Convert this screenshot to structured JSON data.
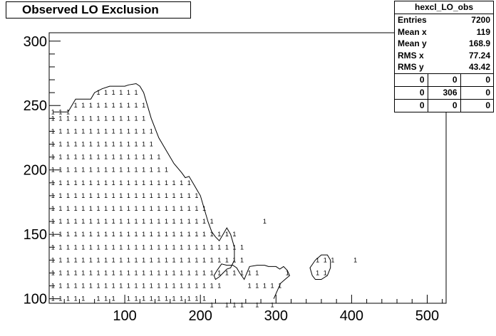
{
  "title": "Observed LO Exclusion",
  "stats": {
    "name": "hexcl_LO_obs",
    "rows": [
      {
        "label": "Entries",
        "value": "7200"
      },
      {
        "label": "Mean x",
        "value": "119"
      },
      {
        "label": "Mean y",
        "value": "168.9"
      },
      {
        "label": "RMS x",
        "value": "77.24"
      },
      {
        "label": "RMS y",
        "value": "43.42"
      }
    ],
    "grid": [
      [
        "0",
        "0",
        "0"
      ],
      [
        "0",
        "306",
        "0"
      ],
      [
        "0",
        "0",
        "0"
      ]
    ]
  },
  "chart_data": {
    "type": "scatter",
    "title": "Observed LO Exclusion",
    "xlabel": "",
    "ylabel": "",
    "xlim": [
      0,
      525
    ],
    "ylim": [
      96.5,
      306.5
    ],
    "xticks": [
      100,
      200,
      300,
      400,
      500
    ],
    "yticks": [
      100,
      150,
      200,
      250,
      300
    ],
    "cell_label": "1",
    "columns": [
      {
        "x": 5,
        "y": [
          100,
          110,
          120,
          130,
          140,
          150,
          160,
          170,
          180,
          190,
          200,
          210,
          220,
          230,
          240,
          245
        ]
      },
      {
        "x": 15,
        "y": [
          100,
          110,
          120,
          130,
          140,
          150,
          160,
          170,
          180,
          190,
          200,
          210,
          220,
          230,
          240,
          245
        ]
      },
      {
        "x": 25,
        "y": [
          100,
          110,
          120,
          130,
          140,
          150,
          160,
          170,
          180,
          190,
          200,
          210,
          220,
          230,
          240,
          245
        ]
      },
      {
        "x": 35,
        "y": [
          100,
          110,
          120,
          130,
          140,
          150,
          160,
          170,
          180,
          190,
          200,
          210,
          220,
          230,
          240,
          250
        ]
      },
      {
        "x": 45,
        "y": [
          100,
          110,
          120,
          130,
          140,
          150,
          160,
          170,
          180,
          190,
          200,
          210,
          220,
          230,
          240,
          250
        ]
      },
      {
        "x": 55,
        "y": [
          110,
          120,
          130,
          140,
          150,
          160,
          170,
          180,
          190,
          200,
          210,
          220,
          230,
          240,
          250
        ]
      },
      {
        "x": 65,
        "y": [
          100,
          110,
          120,
          130,
          140,
          150,
          160,
          170,
          180,
          190,
          200,
          210,
          220,
          230,
          240,
          250,
          260
        ]
      },
      {
        "x": 75,
        "y": [
          100,
          110,
          120,
          130,
          140,
          150,
          160,
          170,
          180,
          190,
          200,
          210,
          220,
          230,
          240,
          250,
          260
        ]
      },
      {
        "x": 85,
        "y": [
          100,
          110,
          120,
          130,
          140,
          150,
          160,
          170,
          180,
          190,
          200,
          210,
          220,
          230,
          240,
          250,
          260
        ]
      },
      {
        "x": 95,
        "y": [
          110,
          120,
          130,
          140,
          150,
          160,
          170,
          180,
          190,
          200,
          210,
          220,
          230,
          240,
          250,
          260
        ]
      },
      {
        "x": 105,
        "y": [
          100,
          110,
          120,
          130,
          140,
          150,
          160,
          170,
          180,
          190,
          200,
          210,
          220,
          230,
          240,
          250,
          260
        ]
      },
      {
        "x": 115,
        "y": [
          100,
          110,
          120,
          130,
          140,
          150,
          160,
          170,
          180,
          190,
          200,
          210,
          220,
          230,
          240,
          250,
          260
        ]
      },
      {
        "x": 125,
        "y": [
          100,
          110,
          120,
          130,
          140,
          150,
          160,
          170,
          180,
          190,
          200,
          210,
          220,
          230,
          240,
          250
        ]
      },
      {
        "x": 135,
        "y": [
          100,
          110,
          120,
          130,
          140,
          150,
          160,
          170,
          180,
          190,
          200,
          210,
          220,
          230
        ]
      },
      {
        "x": 145,
        "y": [
          100,
          110,
          120,
          130,
          140,
          150,
          160,
          170,
          180,
          190,
          200,
          210
        ]
      },
      {
        "x": 155,
        "y": [
          100,
          110,
          120,
          130,
          140,
          150,
          160,
          170,
          180,
          190,
          200
        ]
      },
      {
        "x": 165,
        "y": [
          100,
          110,
          120,
          130,
          140,
          150,
          160,
          170,
          180,
          190
        ]
      },
      {
        "x": 175,
        "y": [
          100,
          110,
          120,
          130,
          140,
          150,
          160,
          170,
          180,
          190
        ]
      },
      {
        "x": 185,
        "y": [
          100,
          110,
          120,
          130,
          140,
          150,
          160,
          170,
          180,
          190
        ]
      },
      {
        "x": 195,
        "y": [
          100,
          110,
          120,
          130,
          140,
          150,
          160,
          170,
          180
        ]
      },
      {
        "x": 205,
        "y": [
          100,
          110,
          120,
          130,
          140,
          150,
          160,
          170
        ]
      },
      {
        "x": 215,
        "y": [
          95,
          110,
          120,
          130,
          140,
          150,
          160
        ]
      },
      {
        "x": 225,
        "y": [
          110,
          120,
          130,
          140,
          150
        ]
      },
      {
        "x": 235,
        "y": [
          95,
          120,
          130,
          140,
          150
        ]
      },
      {
        "x": 245,
        "y": [
          95,
          120,
          130,
          140,
          150
        ]
      },
      {
        "x": 255,
        "y": [
          95,
          120,
          130,
          140
        ]
      },
      {
        "x": 265,
        "y": [
          110,
          120
        ]
      },
      {
        "x": 275,
        "y": [
          95,
          110,
          120
        ]
      },
      {
        "x": 285,
        "y": [
          110,
          160
        ]
      },
      {
        "x": 295,
        "y": [
          95,
          110
        ]
      },
      {
        "x": 305,
        "y": [
          110
        ]
      },
      {
        "x": 315,
        "y": [
          120
        ]
      },
      {
        "x": 355,
        "y": [
          120,
          130
        ]
      },
      {
        "x": 365,
        "y": [
          120,
          130
        ]
      },
      {
        "x": 375,
        "y": [
          130
        ]
      },
      {
        "x": 405,
        "y": [
          130
        ]
      }
    ],
    "contours": [
      {
        "name": "main",
        "points": [
          [
            5,
            245
          ],
          [
            15,
            245
          ],
          [
            25,
            245
          ],
          [
            30,
            250
          ],
          [
            35,
            255
          ],
          [
            45,
            255
          ],
          [
            55,
            255
          ],
          [
            60,
            260
          ],
          [
            70,
            263
          ],
          [
            80,
            265
          ],
          [
            90,
            265
          ],
          [
            100,
            265
          ],
          [
            105,
            266
          ],
          [
            115,
            267
          ],
          [
            120,
            265
          ],
          [
            125,
            260
          ],
          [
            130,
            250
          ],
          [
            135,
            240
          ],
          [
            145,
            225
          ],
          [
            155,
            215
          ],
          [
            165,
            205
          ],
          [
            175,
            198
          ],
          [
            180,
            194
          ],
          [
            185,
            195
          ],
          [
            190,
            190
          ],
          [
            195,
            185
          ],
          [
            200,
            180
          ],
          [
            205,
            170
          ],
          [
            210,
            160
          ],
          [
            215,
            152
          ],
          [
            220,
            148
          ],
          [
            225,
            145
          ],
          [
            230,
            150
          ],
          [
            235,
            155
          ],
          [
            240,
            150
          ],
          [
            245,
            140
          ],
          [
            245,
            130
          ],
          [
            240,
            124
          ],
          [
            235,
            123
          ],
          [
            230,
            120
          ],
          [
            225,
            117
          ],
          [
            220,
            115
          ],
          [
            218,
            118
          ],
          [
            222,
            122
          ],
          [
            228,
            127
          ],
          [
            235,
            126
          ],
          [
            243,
            126
          ],
          [
            248,
            124
          ],
          [
            252,
            120
          ],
          [
            258,
            115
          ],
          [
            265,
            125
          ],
          [
            275,
            126
          ],
          [
            285,
            126
          ],
          [
            290,
            125
          ],
          [
            300,
            125
          ],
          [
            305,
            123
          ],
          [
            310,
            125
          ],
          [
            315,
            122
          ],
          [
            318,
            118
          ],
          [
            312,
            115
          ],
          [
            306,
            112
          ],
          [
            303,
            108
          ],
          [
            300,
            104
          ],
          [
            297,
            100
          ]
        ]
      },
      {
        "name": "island",
        "points": [
          [
            348,
            118
          ],
          [
            345,
            124
          ],
          [
            352,
            130
          ],
          [
            360,
            134
          ],
          [
            368,
            134
          ],
          [
            372,
            130
          ],
          [
            372,
            124
          ],
          [
            368,
            118
          ],
          [
            360,
            115
          ],
          [
            352,
            115
          ],
          [
            348,
            118
          ]
        ]
      }
    ]
  }
}
